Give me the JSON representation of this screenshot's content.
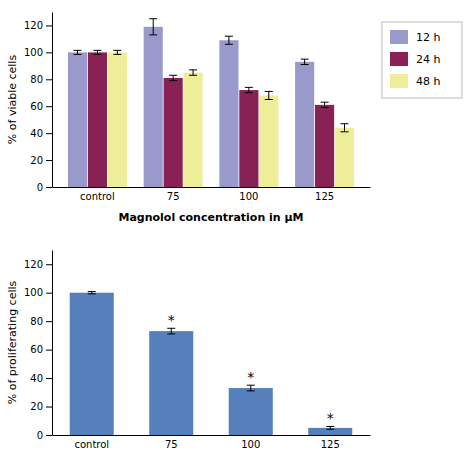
{
  "chart_data": [
    {
      "type": "bar",
      "categories": [
        "control",
        "75",
        "100",
        "125"
      ],
      "series": [
        {
          "name": "12 h",
          "color": "#9999cc",
          "values": [
            100,
            119,
            109,
            93
          ],
          "errors": [
            1.5,
            6,
            3,
            2
          ]
        },
        {
          "name": "24 h",
          "color": "#882255",
          "values": [
            100,
            81,
            72,
            61
          ],
          "errors": [
            1.5,
            2,
            2,
            2
          ]
        },
        {
          "name": "48 h",
          "color": "#eeee99",
          "values": [
            100,
            85,
            68,
            44
          ],
          "errors": [
            1.5,
            2,
            3,
            3
          ]
        }
      ],
      "ylabel": "% of viable cells",
      "xlabel": "Magnolol concentration in μM",
      "ylim": [
        0,
        130
      ],
      "yticks": [
        0,
        20,
        40,
        60,
        80,
        100,
        120
      ],
      "grid": false,
      "legend": "right"
    },
    {
      "type": "bar",
      "categories": [
        "control",
        "75",
        "100",
        "125"
      ],
      "values": [
        100,
        73,
        33,
        5
      ],
      "errors": [
        0.8,
        2,
        2,
        1
      ],
      "color": "#5580bb",
      "annotations": [
        {
          "category": "75",
          "text": "*"
        },
        {
          "category": "100",
          "text": "*"
        },
        {
          "category": "125",
          "text": "*"
        }
      ],
      "ylabel": "% of proliferating cells",
      "ylim": [
        0,
        130
      ],
      "yticks": [
        0,
        20,
        40,
        60,
        80,
        100,
        120
      ],
      "grid": false
    }
  ]
}
